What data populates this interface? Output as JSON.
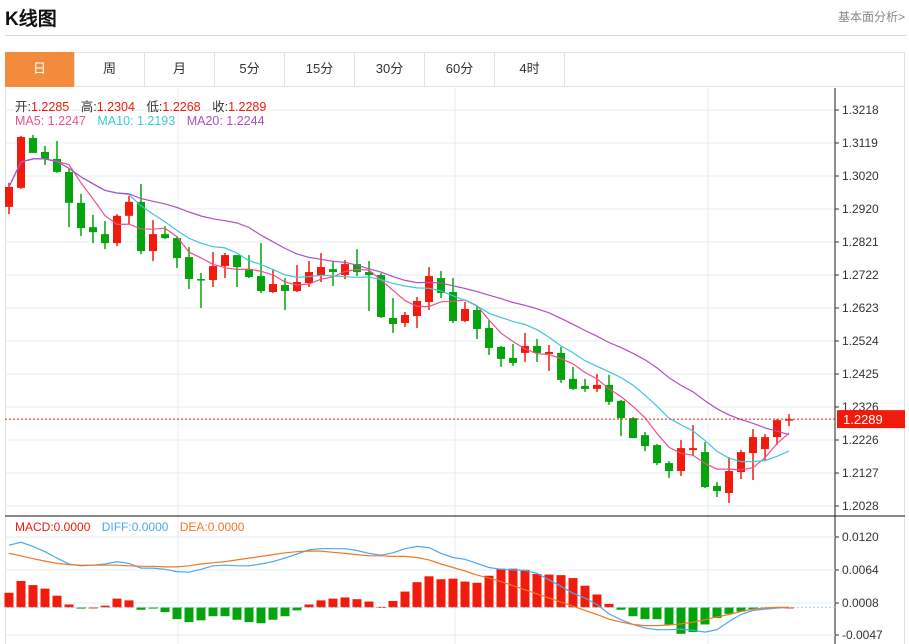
{
  "header": {
    "title": "K线图",
    "link": "基本面分析>"
  },
  "tabs": [
    "日",
    "周",
    "月",
    "5分",
    "15分",
    "30分",
    "60分",
    "4时"
  ],
  "active_tab": 0,
  "ohlc_legend": {
    "open_label": "开:",
    "open": "1.2285",
    "high_label": "高:",
    "high": "1.2304",
    "low_label": "低:",
    "low": "1.2268",
    "close_label": "收:",
    "close": "1.2289"
  },
  "ma_legend": {
    "ma5": "MA5: 1.2247",
    "ma10": "MA10: 1.2193",
    "ma20": "MA20: 1.2244"
  },
  "macd_legend": {
    "macd": "MACD:0.0000",
    "diff": "DIFF:0.0000",
    "dea": "DEA:0.0000"
  },
  "colors": {
    "up": "#f21a0a",
    "down": "#04a40c",
    "ma5": "#f0508a",
    "ma10": "#3cc8dc",
    "ma20": "#b050c8",
    "diff": "#4aa8f0",
    "dea": "#f07828",
    "active_tab": "#f28c3c"
  },
  "chart_data": [
    {
      "type": "candlestick",
      "title": "K线图",
      "y_ticks": [
        "1.3218",
        "1.3119",
        "1.3020",
        "1.2920",
        "1.2821",
        "1.2722",
        "1.2623",
        "1.2524",
        "1.2425",
        "1.2326",
        "1.2226",
        "1.2127",
        "1.2028"
      ],
      "ylim": [
        1.2028,
        1.3218
      ],
      "last_price": "1.2289",
      "grid": true,
      "ohlc": [
        [
          1.2927,
          1.2999,
          1.2905,
          1.2987
        ],
        [
          1.2984,
          1.314,
          1.2981,
          1.3137
        ],
        [
          1.3134,
          1.3143,
          1.3089,
          1.3089
        ],
        [
          1.3092,
          1.311,
          1.3053,
          1.3071
        ],
        [
          1.3071,
          1.3125,
          1.3029,
          1.3032
        ],
        [
          1.3032,
          1.3041,
          1.2866,
          1.2939
        ],
        [
          1.2939,
          1.2966,
          1.2839,
          1.2863
        ],
        [
          1.2866,
          1.2903,
          1.2818,
          1.2851
        ],
        [
          1.2845,
          1.2884,
          1.28,
          1.2818
        ],
        [
          1.2818,
          1.2905,
          1.2809,
          1.29
        ],
        [
          1.29,
          1.296,
          1.2875,
          1.2942
        ],
        [
          1.2942,
          1.2996,
          1.2785,
          1.2794
        ],
        [
          1.2794,
          1.2887,
          1.2764,
          1.2845
        ],
        [
          1.2845,
          1.2869,
          1.283,
          1.2833
        ],
        [
          1.2833,
          1.2839,
          1.2743,
          1.2773
        ],
        [
          1.2776,
          1.2806,
          1.268,
          1.271
        ],
        [
          1.271,
          1.2728,
          1.2623,
          1.2707
        ],
        [
          1.2707,
          1.2791,
          1.2686,
          1.2749
        ],
        [
          1.2749,
          1.2788,
          1.2713,
          1.2782
        ],
        [
          1.2782,
          1.2782,
          1.2686,
          1.2746
        ],
        [
          1.274,
          1.2782,
          1.2713,
          1.2716
        ],
        [
          1.2719,
          1.2818,
          1.2668,
          1.2674
        ],
        [
          1.2671,
          1.274,
          1.2668,
          1.2695
        ],
        [
          1.2692,
          1.2713,
          1.2617,
          1.2674
        ],
        [
          1.2674,
          1.2752,
          1.2671,
          1.2701
        ],
        [
          1.2698,
          1.2764,
          1.2686,
          1.2731
        ],
        [
          1.2719,
          1.2788,
          1.2701,
          1.2746
        ],
        [
          1.274,
          1.2764,
          1.2689,
          1.2731
        ],
        [
          1.2722,
          1.2767,
          1.271,
          1.2755
        ],
        [
          1.2755,
          1.28,
          1.2719,
          1.2731
        ],
        [
          1.2731,
          1.2764,
          1.2614,
          1.2722
        ],
        [
          1.2722,
          1.2728,
          1.2593,
          1.2596
        ],
        [
          1.2593,
          1.2653,
          1.2548,
          1.2575
        ],
        [
          1.2578,
          1.2611,
          1.2566,
          1.2602
        ],
        [
          1.2599,
          1.2656,
          1.2563,
          1.2644
        ],
        [
          1.2641,
          1.2746,
          1.2617,
          1.2719
        ],
        [
          1.2713,
          1.2734,
          1.2653,
          1.2668
        ],
        [
          1.2671,
          1.2713,
          1.2578,
          1.2584
        ],
        [
          1.2584,
          1.2641,
          1.2581,
          1.262
        ],
        [
          1.2617,
          1.2629,
          1.253,
          1.256
        ],
        [
          1.2563,
          1.2587,
          1.2482,
          1.2503
        ],
        [
          1.2506,
          1.2509,
          1.2446,
          1.247
        ],
        [
          1.2473,
          1.2515,
          1.2449,
          1.2458
        ],
        [
          1.2488,
          1.2548,
          1.2461,
          1.2509
        ],
        [
          1.2509,
          1.253,
          1.2461,
          1.2488
        ],
        [
          1.2485,
          1.2512,
          1.2434,
          1.2491
        ],
        [
          1.2488,
          1.2506,
          1.2398,
          1.2407
        ],
        [
          1.241,
          1.2446,
          1.2377,
          1.238
        ],
        [
          1.2389,
          1.241,
          1.2371,
          1.238
        ],
        [
          1.238,
          1.2425,
          1.2371,
          1.2392
        ],
        [
          1.2392,
          1.2422,
          1.2332,
          1.2341
        ],
        [
          1.2344,
          1.2347,
          1.2238,
          1.2292
        ],
        [
          1.2292,
          1.2295,
          1.2232,
          1.2232
        ],
        [
          1.2241,
          1.225,
          1.2193,
          1.2208
        ],
        [
          1.2211,
          1.2214,
          1.2151,
          1.2157
        ],
        [
          1.2157,
          1.2163,
          1.2112,
          1.2133
        ],
        [
          1.2133,
          1.2226,
          1.2118,
          1.2202
        ],
        [
          1.2196,
          1.2271,
          1.2178,
          1.2202
        ],
        [
          1.219,
          1.222,
          1.2082,
          1.2085
        ],
        [
          1.2088,
          1.21,
          1.2055,
          1.2073
        ],
        [
          1.2067,
          1.2175,
          1.2037,
          1.2133
        ],
        [
          1.213,
          1.2196,
          1.2109,
          1.219
        ],
        [
          1.2187,
          1.2259,
          1.2106,
          1.2235
        ],
        [
          1.2199,
          1.2244,
          1.2163,
          1.2235
        ],
        [
          1.2235,
          1.2289,
          1.2211,
          1.2286
        ],
        [
          1.2285,
          1.2304,
          1.2268,
          1.2289
        ]
      ],
      "series": [
        {
          "name": "MA5"
        },
        {
          "name": "MA10"
        },
        {
          "name": "MA20"
        }
      ]
    },
    {
      "type": "bar+line",
      "title": "MACD",
      "y_ticks": [
        "0.0120",
        "0.0064",
        "0.0008",
        "-0.0047"
      ],
      "ylim": [
        -0.0047,
        0.012
      ],
      "macd": [
        0.0025,
        0.0045,
        0.0038,
        0.0032,
        0.002,
        0.0005,
        -0.0002,
        0.0,
        0.0003,
        0.0015,
        0.0012,
        -0.0004,
        -0.0002,
        -0.0008,
        -0.002,
        -0.0025,
        -0.0022,
        -0.0015,
        -0.0015,
        -0.0021,
        -0.0025,
        -0.0027,
        -0.0021,
        -0.0015,
        -0.0005,
        0.0005,
        0.0012,
        0.0015,
        0.0017,
        0.0014,
        0.001,
        0.0001,
        0.0011,
        0.0027,
        0.0043,
        0.0053,
        0.0048,
        0.0049,
        0.0044,
        0.0042,
        0.0054,
        0.0066,
        0.0066,
        0.0064,
        0.0057,
        0.0056,
        0.0055,
        0.005,
        0.0037,
        0.0022,
        0.0006,
        -0.0004,
        -0.0015,
        -0.002,
        -0.002,
        -0.0029,
        -0.0045,
        -0.0042,
        -0.0029,
        -0.0018,
        -0.0011,
        -0.0007,
        -0.0003,
        -0.0001,
        0.0,
        0.0
      ],
      "diff": [
        0.0106,
        0.0111,
        0.0104,
        0.0095,
        0.0084,
        0.0074,
        0.0071,
        0.0072,
        0.0074,
        0.0078,
        0.0075,
        0.0067,
        0.0067,
        0.0065,
        0.0061,
        0.006,
        0.0065,
        0.0071,
        0.0072,
        0.0071,
        0.0071,
        0.0074,
        0.0078,
        0.0084,
        0.0091,
        0.0098,
        0.01,
        0.01,
        0.01,
        0.0097,
        0.0092,
        0.0089,
        0.0093,
        0.01,
        0.0104,
        0.0102,
        0.0092,
        0.0085,
        0.0082,
        0.0075,
        0.0068,
        0.0065,
        0.0064,
        0.0063,
        0.0058,
        0.0047,
        0.0036,
        0.0024,
        0.0016,
        0.0005,
        -0.0011,
        -0.0021,
        -0.0029,
        -0.0035,
        -0.0038,
        -0.0038,
        -0.0037,
        -0.0039,
        -0.0042,
        -0.0038,
        -0.0024,
        -0.0012,
        -0.0005,
        -0.0003,
        -0.0001,
        0.0
      ],
      "dea": [
        0.0092,
        0.0088,
        0.0083,
        0.0079,
        0.0075,
        0.0073,
        0.0072,
        0.0072,
        0.0072,
        0.0072,
        0.0071,
        0.007,
        0.007,
        0.0069,
        0.0069,
        0.0071,
        0.0074,
        0.0076,
        0.0078,
        0.0081,
        0.0084,
        0.0087,
        0.009,
        0.0093,
        0.0095,
        0.0096,
        0.0096,
        0.0094,
        0.0092,
        0.009,
        0.0088,
        0.0088,
        0.0087,
        0.0087,
        0.0085,
        0.0081,
        0.0074,
        0.0068,
        0.0062,
        0.0055,
        0.005,
        0.0044,
        0.0037,
        0.003,
        0.0023,
        0.0016,
        0.0009,
        0.0002,
        -0.0005,
        -0.0012,
        -0.002,
        -0.0025,
        -0.0029,
        -0.0031,
        -0.0031,
        -0.003,
        -0.0028,
        -0.0025,
        -0.0021,
        -0.0016,
        -0.0012,
        -0.0007,
        -0.0003,
        -0.0001,
        0.0,
        0.0
      ]
    }
  ]
}
